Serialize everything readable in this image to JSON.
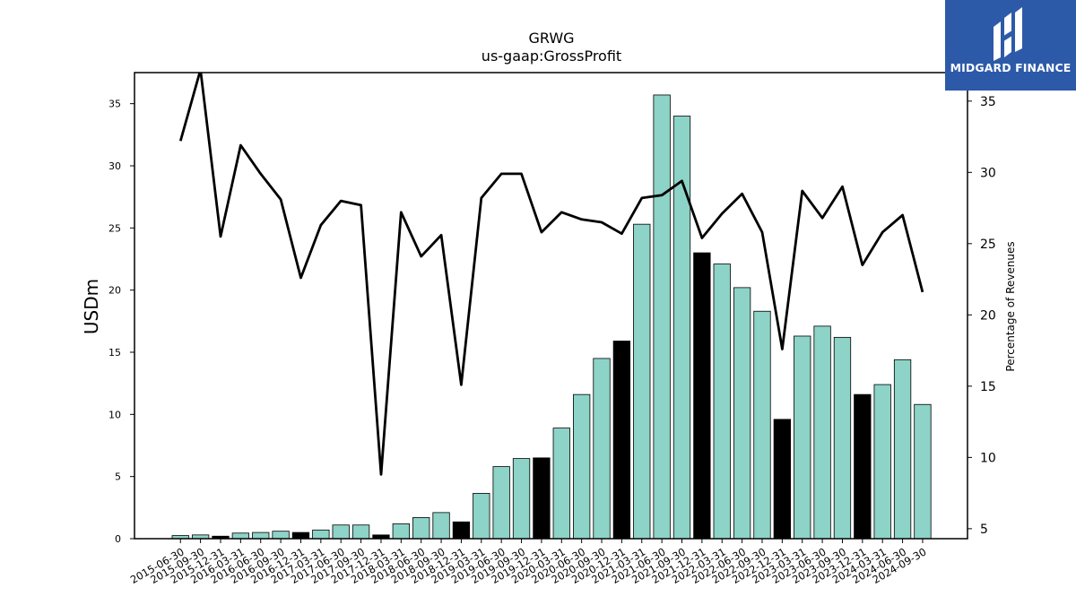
{
  "chart_data": {
    "type": "bar",
    "title": "GRWG",
    "subtitle": "us-gaap:GrossProfit",
    "ylabel": "USDm",
    "y2label": "Percentage of Revenues",
    "ylim": [
      0,
      37.5
    ],
    "y2lim": [
      4.3,
      37.0
    ],
    "yticks": [
      0,
      5,
      10,
      15,
      20,
      25,
      30,
      35
    ],
    "y2ticks": [
      5,
      10,
      15,
      20,
      25,
      30,
      35
    ],
    "categories": [
      "2015-06-30",
      "2015-09-30",
      "2015-12-31",
      "2016-03-31",
      "2016-06-30",
      "2016-09-30",
      "2016-12-31",
      "2017-03-31",
      "2017-06-30",
      "2017-09-30",
      "2017-12-31",
      "2018-03-31",
      "2018-06-30",
      "2018-09-30",
      "2018-12-31",
      "2019-03-31",
      "2019-06-30",
      "2019-09-30",
      "2019-12-31",
      "2020-03-31",
      "2020-06-30",
      "2020-09-30",
      "2020-12-31",
      "2021-03-31",
      "2021-06-30",
      "2021-09-30",
      "2021-12-31",
      "2022-03-31",
      "2022-06-30",
      "2022-09-30",
      "2022-12-31",
      "2023-03-31",
      "2023-06-30",
      "2023-09-30",
      "2023-12-31",
      "2024-03-31",
      "2024-06-30",
      "2024-09-30"
    ],
    "series": [
      {
        "kind": "bar",
        "axis": "left",
        "values": [
          0.25,
          0.3,
          0.2,
          0.45,
          0.5,
          0.6,
          0.5,
          0.7,
          1.1,
          1.1,
          0.3,
          1.2,
          1.7,
          2.1,
          1.35,
          3.65,
          5.8,
          6.45,
          6.5,
          8.9,
          11.6,
          14.5,
          15.9,
          25.3,
          35.7,
          34.0,
          23.0,
          22.1,
          20.2,
          18.3,
          9.6,
          16.3,
          17.1,
          16.2,
          11.6,
          12.4,
          14.4,
          10.8
        ],
        "colors": {
          "regular": "#8dd3c7",
          "year_end": "#000000"
        },
        "year_end_flags": [
          false,
          false,
          true,
          false,
          false,
          false,
          true,
          false,
          false,
          false,
          true,
          false,
          false,
          false,
          true,
          false,
          false,
          false,
          true,
          false,
          false,
          false,
          true,
          false,
          false,
          false,
          true,
          false,
          false,
          false,
          true,
          false,
          false,
          false,
          true,
          false,
          false,
          false
        ]
      },
      {
        "kind": "line",
        "axis": "right",
        "color": "#000000",
        "values": [
          32.2,
          37.2,
          25.5,
          31.9,
          29.9,
          28.1,
          22.6,
          26.3,
          28.0,
          27.7,
          8.8,
          27.2,
          24.1,
          25.6,
          15.1,
          28.2,
          29.9,
          29.9,
          25.8,
          27.2,
          26.7,
          26.5,
          25.7,
          28.2,
          28.4,
          29.4,
          25.4,
          27.1,
          28.5,
          25.8,
          17.6,
          28.7,
          26.8,
          29.0,
          23.5,
          25.8,
          27.0,
          21.6
        ]
      }
    ],
    "grid": false
  },
  "branding": {
    "name": "MIDGARD FINANCE",
    "bg_color": "#2d5aa8"
  }
}
